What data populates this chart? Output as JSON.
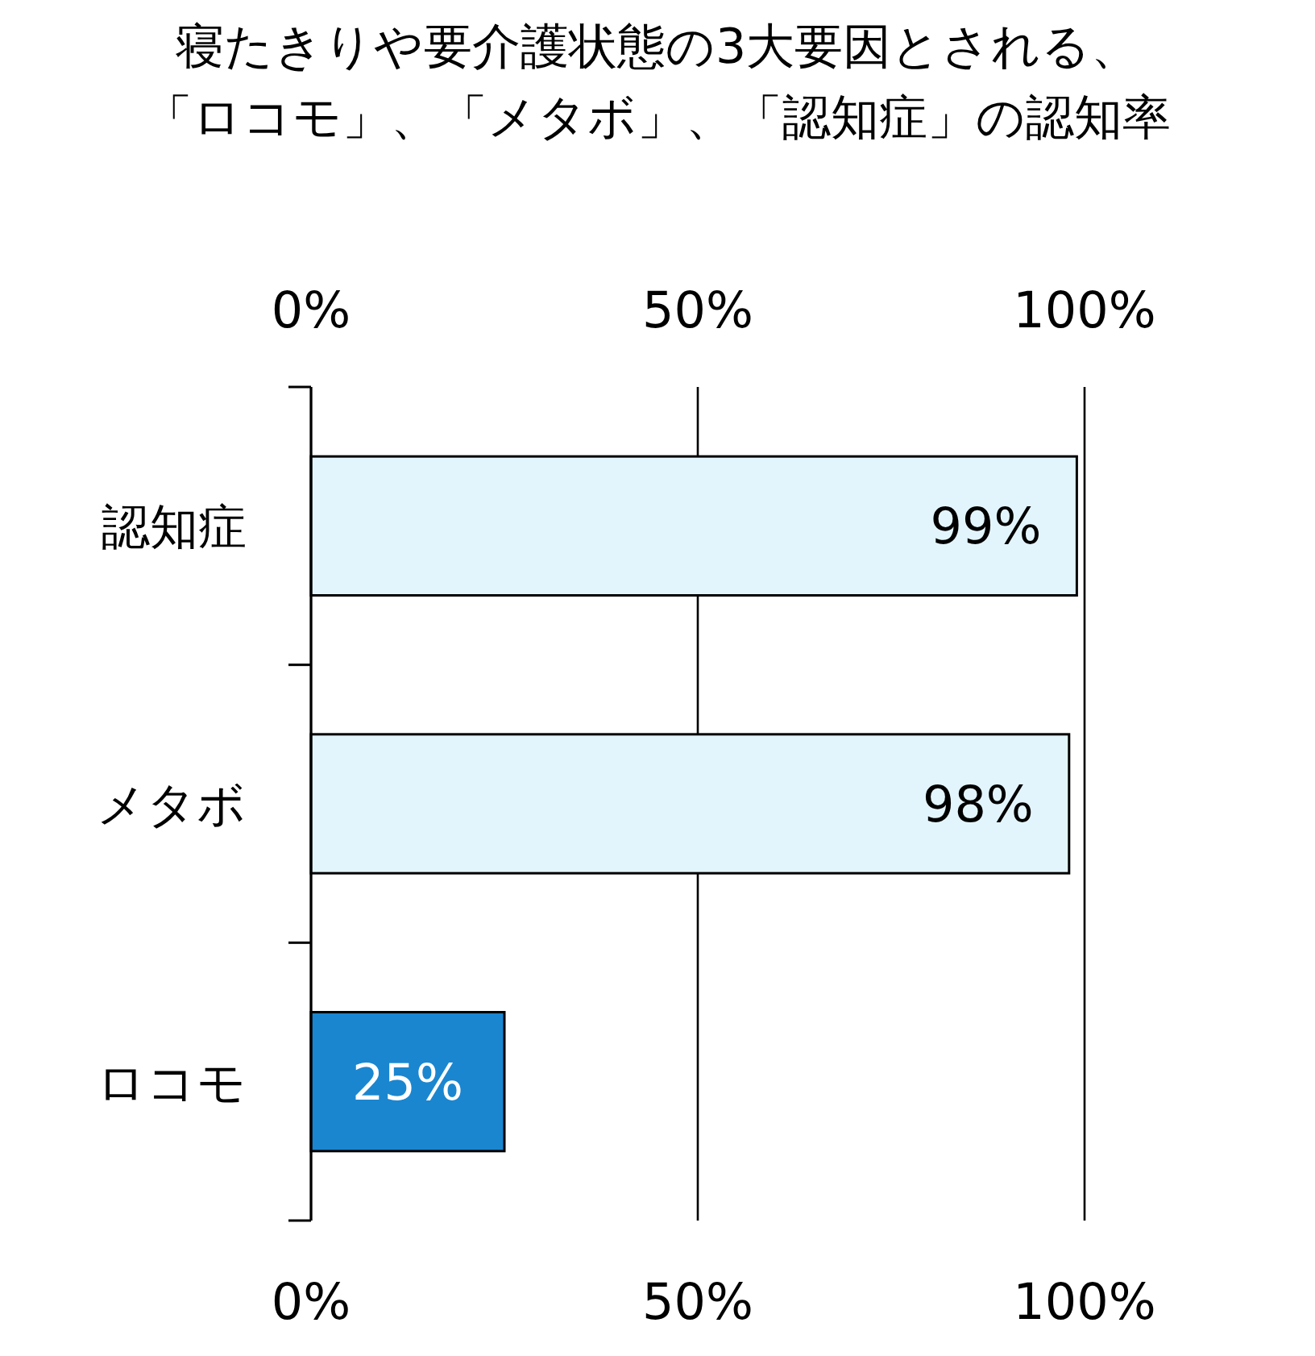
{
  "chart_data": {
    "type": "bar",
    "orientation": "horizontal",
    "title": "寝たきりや要介護状態の3大要因とされる、「ロコモ」、「メタボ」、「認知症」の認知率",
    "categories": [
      "認知症",
      "メタボ",
      "ロコモ"
    ],
    "values": [
      99,
      98,
      25
    ],
    "value_labels": [
      "99%",
      "98%",
      "25%"
    ],
    "colors": [
      "#e3f5fc",
      "#e3f5fc",
      "#1a86d0"
    ],
    "xlim": [
      0,
      100
    ],
    "xticks": [
      {
        "value": 0,
        "label": "0%"
      },
      {
        "value": 50,
        "label": "50%"
      },
      {
        "value": 100,
        "label": "100%"
      }
    ],
    "x2lim": [
      0,
      100
    ],
    "x2ticks": [
      {
        "value": 0,
        "label": "0%"
      },
      {
        "value": 50,
        "label": "50%"
      },
      {
        "value": 100,
        "label": "100%"
      }
    ],
    "grid": "x"
  }
}
